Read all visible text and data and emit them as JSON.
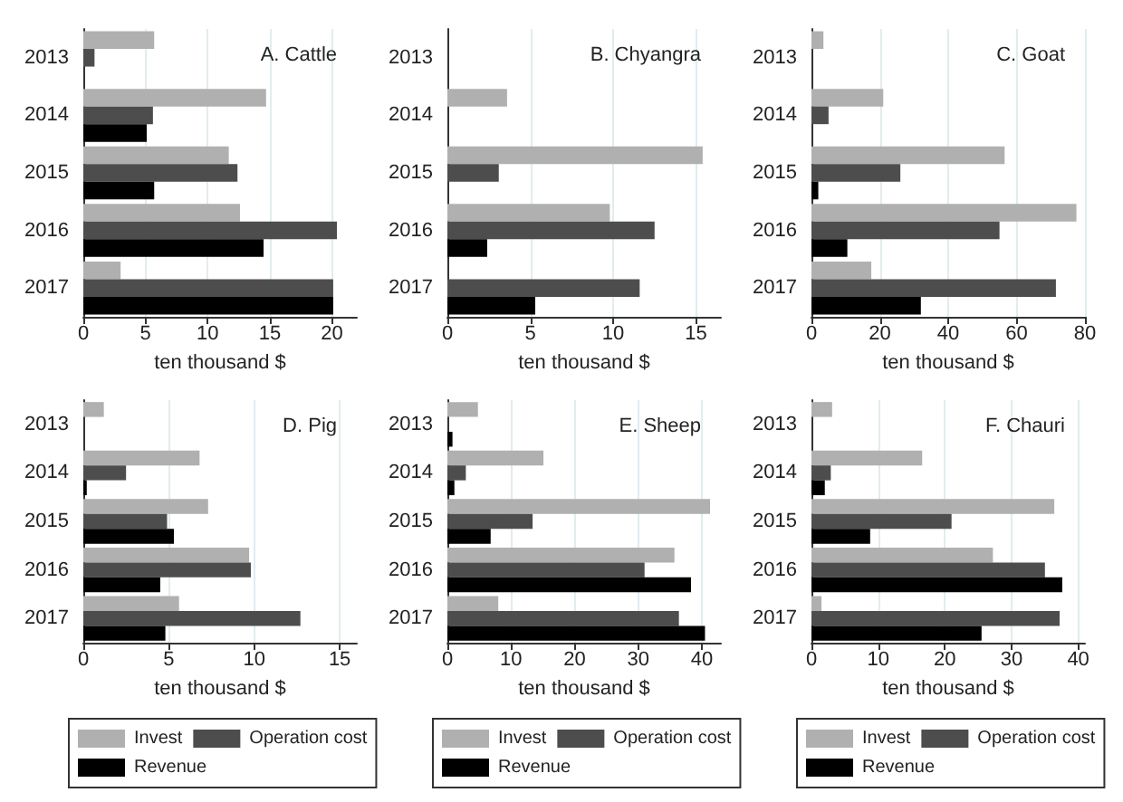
{
  "chart_data": [
    {
      "type": "bar",
      "orientation": "horizontal",
      "title": "A. Cattle",
      "xlabel": "ten thousand $",
      "categories": [
        "2013",
        "2014",
        "2015",
        "2016",
        "2017"
      ],
      "xlim": [
        0,
        22
      ],
      "xticks": [
        0,
        5,
        10,
        15,
        20
      ],
      "grid": "x",
      "legend": false,
      "series": [
        {
          "color": "#b0b0b0",
          "values": [
            5.7,
            14.7,
            11.7,
            12.6,
            3.0
          ]
        },
        {
          "color": "#4d4d4d",
          "values": [
            0.9,
            5.6,
            12.4,
            20.4,
            20.1
          ]
        },
        {
          "color": "#000000",
          "values": [
            null,
            5.1,
            5.7,
            14.5,
            20.1
          ]
        }
      ]
    },
    {
      "type": "bar",
      "orientation": "horizontal",
      "title": "B. Chyangra",
      "xlabel": "ten thousand $",
      "categories": [
        "2013",
        "2014",
        "2015",
        "2016",
        "2017"
      ],
      "xlim": [
        0,
        16.5
      ],
      "xticks": [
        0,
        5,
        10,
        15
      ],
      "grid": "x",
      "legend": false,
      "series": [
        {
          "color": "#b0b0b0",
          "values": [
            null,
            3.6,
            15.4,
            9.8,
            null
          ]
        },
        {
          "color": "#4d4d4d",
          "values": [
            null,
            null,
            3.1,
            12.5,
            11.6
          ]
        },
        {
          "color": "#000000",
          "values": [
            null,
            null,
            null,
            2.4,
            5.3
          ]
        }
      ]
    },
    {
      "type": "bar",
      "orientation": "horizontal",
      "title": "C. Goat",
      "xlabel": "ten thousand $",
      "categories": [
        "2013",
        "2014",
        "2015",
        "2016",
        "2017"
      ],
      "xlim": [
        0,
        80
      ],
      "xticks": [
        0,
        20,
        40,
        60,
        80
      ],
      "grid": "x",
      "legend": false,
      "series": [
        {
          "color": "#b0b0b0",
          "values": [
            3.5,
            21,
            56.5,
            77.5,
            17.5
          ]
        },
        {
          "color": "#4d4d4d",
          "values": [
            null,
            5,
            26,
            55,
            71.5
          ]
        },
        {
          "color": "#000000",
          "values": [
            null,
            null,
            2,
            10.5,
            32
          ]
        }
      ]
    },
    {
      "type": "bar",
      "orientation": "horizontal",
      "title": "D. Pig",
      "xlabel": "ten thousand $",
      "categories": [
        "2013",
        "2014",
        "2015",
        "2016",
        "2017"
      ],
      "xlim": [
        0,
        16
      ],
      "xticks": [
        0,
        5,
        10,
        15
      ],
      "grid": "x",
      "legend": "bottom",
      "series": [
        {
          "name": "Invest",
          "color": "#b0b0b0",
          "values": [
            1.2,
            6.8,
            7.3,
            9.7,
            5.6
          ]
        },
        {
          "name": "Operation cost",
          "color": "#4d4d4d",
          "values": [
            null,
            2.5,
            4.9,
            9.8,
            12.7
          ]
        },
        {
          "name": "Revenue",
          "color": "#000000",
          "values": [
            null,
            0.2,
            5.3,
            4.5,
            4.8
          ]
        }
      ]
    },
    {
      "type": "bar",
      "orientation": "horizontal",
      "title": "E. Sheep",
      "xlabel": "ten thousand $",
      "categories": [
        "2013",
        "2014",
        "2015",
        "2016",
        "2017"
      ],
      "xlim": [
        0,
        43
      ],
      "xticks": [
        0,
        10,
        20,
        30,
        40
      ],
      "grid": "x",
      "legend": "bottom",
      "series": [
        {
          "name": "Invest",
          "color": "#b0b0b0",
          "values": [
            4.8,
            15.1,
            41.3,
            35.7,
            8
          ]
        },
        {
          "name": "Operation cost",
          "color": "#4d4d4d",
          "values": [
            null,
            2.9,
            13.4,
            31,
            36.4
          ]
        },
        {
          "name": "Revenue",
          "color": "#000000",
          "values": [
            0.8,
            1.1,
            6.8,
            38.3,
            40.5
          ]
        }
      ]
    },
    {
      "type": "bar",
      "orientation": "horizontal",
      "title": "F. Chauri",
      "xlabel": "ten thousand $",
      "categories": [
        "2013",
        "2014",
        "2015",
        "2016",
        "2017"
      ],
      "xlim": [
        0,
        41
      ],
      "xticks": [
        0,
        10,
        20,
        30,
        40
      ],
      "grid": "x",
      "legend": "bottom",
      "series": [
        {
          "name": "Invest",
          "color": "#b0b0b0",
          "values": [
            3.1,
            16.6,
            36.4,
            27.2,
            1.5
          ]
        },
        {
          "name": "Operation cost",
          "color": "#4d4d4d",
          "values": [
            null,
            2.9,
            21,
            35,
            37.2
          ]
        },
        {
          "name": "Revenue",
          "color": "#000000",
          "values": [
            null,
            2.0,
            8.8,
            37.6,
            25.5
          ]
        }
      ]
    }
  ]
}
